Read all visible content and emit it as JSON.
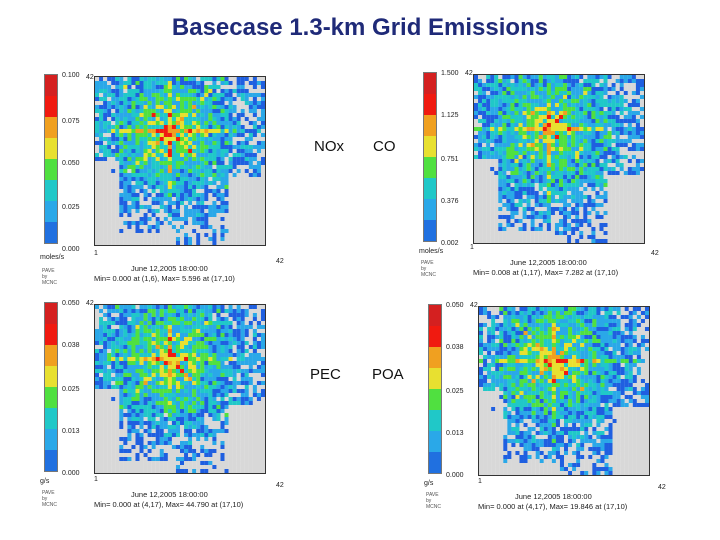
{
  "title": "Basecase 1.3-km Grid Emissions",
  "colors": [
    "#d42020",
    "#f01a10",
    "#f0a020",
    "#e8e030",
    "#50e040",
    "#20c8c8",
    "#2aa8e8",
    "#2070e0"
  ],
  "panels": [
    {
      "id": "nox",
      "species": "NOx",
      "ticks": [
        "0.100",
        "0.075",
        "0.050",
        "0.025",
        "0.000"
      ],
      "unit": "moles/s",
      "top_label": "42",
      "x_start": "1",
      "x_end": "42",
      "date": "June 12,2005 18:00:00",
      "minmax": "Min=   0.000 at (1,6), Max=    5.596 at (17,10)",
      "seed": 3
    },
    {
      "id": "co",
      "species": "CO",
      "ticks": [
        "1.500",
        "1.125",
        "0.751",
        "0.376",
        "0.002"
      ],
      "unit": "moles/s",
      "top_label": "42",
      "x_start": "1",
      "x_end": "42",
      "date": "June 12,2005 18:00:00",
      "minmax": "Min=   0.008 at (1,17), Max=    7.282 at (17,10)",
      "seed": 7
    },
    {
      "id": "pec",
      "species": "PEC",
      "ticks": [
        "0.050",
        "0.038",
        "0.025",
        "0.013",
        "0.000"
      ],
      "unit": "g/s",
      "top_label": "42",
      "x_start": "1",
      "x_end": "42",
      "date": "June 12,2005 18:00:00",
      "minmax": "Min=   0.000 at (4,17), Max=   44.790 at (17,10)",
      "seed": 11
    },
    {
      "id": "poa",
      "species": "POA",
      "ticks": [
        "0.050",
        "0.038",
        "0.025",
        "0.013",
        "0.000"
      ],
      "unit": "g/s",
      "top_label": "42",
      "x_start": "1",
      "x_end": "42",
      "date": "June 12,2005 18:00:00",
      "minmax": "Min=   0.000 at (4,17), Max=   19.846 at (17,10)",
      "seed": 19
    }
  ]
}
